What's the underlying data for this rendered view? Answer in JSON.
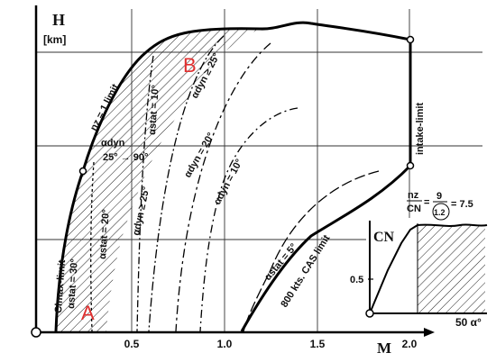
{
  "chart_data": {
    "type": "diagram",
    "axes": {
      "y_label": "H",
      "y_unit": "[km]",
      "x_label": "M",
      "x_ticks": [
        "0.5",
        "1.0",
        "1.5",
        "2.0"
      ]
    },
    "regions": {
      "a": "A",
      "b": "B"
    },
    "boundaries": {
      "nz_limit": "nz = 1 limit",
      "clmax_limit": "Clmax-limit",
      "intake_limit": "intake-limit",
      "cas_limit": "800 kts. CAS limit"
    },
    "contours": {
      "stat_30": "αstat = 30°",
      "stat_20": "αstat = 20°",
      "stat_10": "αstat = 10°",
      "stat_5": "αstat = 5°",
      "dyn_range": "αdyn",
      "dyn_range_value": "25° → 90°",
      "dyn_25_a": "αdyn ≥ 25°",
      "dyn_25_b": "αdyn ≥ 25°",
      "dyn_20": "αdyn = 20°",
      "dyn_10": "αdyn = 10°"
    },
    "inset": {
      "y_label": "CN",
      "y_tick": "0.5",
      "x_label": "50 α°",
      "formula_left": "nz",
      "formula_den": "CN",
      "formula_eq": "=",
      "formula_num": "9",
      "formula_den_value": "1.2",
      "formula_result": "= 7.5"
    }
  }
}
